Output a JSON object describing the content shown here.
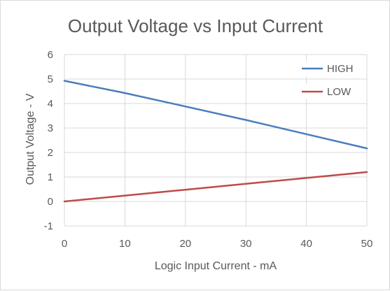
{
  "chart_data": {
    "type": "line",
    "title": "Output Voltage vs Input Current",
    "xlabel": "Logic Input Current - mA",
    "ylabel": "Output Voltage - V",
    "x": [
      0,
      10,
      20,
      30,
      40,
      50
    ],
    "xlim": [
      0,
      50
    ],
    "ylim": [
      -1,
      6
    ],
    "xticks": [
      "0",
      "10",
      "20",
      "30",
      "40",
      "50"
    ],
    "yticks": [
      "-1",
      "0",
      "1",
      "2",
      "3",
      "4",
      "5",
      "6"
    ],
    "grid": true,
    "legend_position": "top-right",
    "series": [
      {
        "name": "HIGH",
        "color": "#4a7ebb",
        "values": [
          4.93,
          4.43,
          3.88,
          3.33,
          2.75,
          2.17
        ]
      },
      {
        "name": "LOW",
        "color": "#be4b48",
        "values": [
          0.0,
          0.24,
          0.48,
          0.72,
          0.96,
          1.2
        ]
      }
    ]
  }
}
